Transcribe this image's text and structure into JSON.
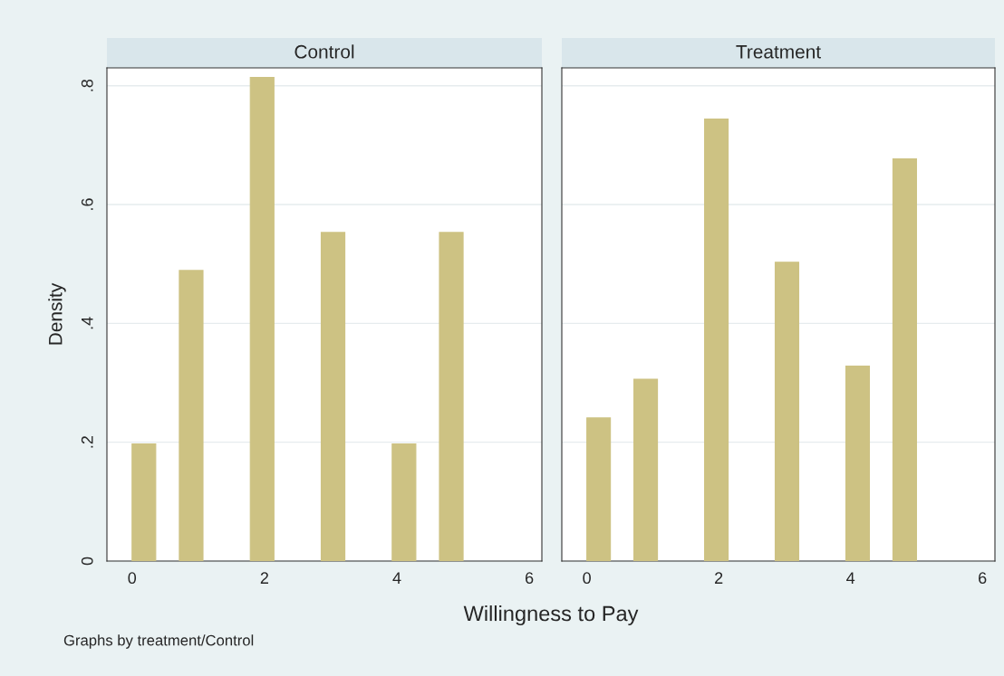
{
  "chart_data": [
    {
      "type": "histogram",
      "title": "Control",
      "ylabel": "Density",
      "xlabel": "Willingness to Pay",
      "annotations": [
        "Graphs by treatment/Control"
      ],
      "bins": [
        0,
        0.357,
        0.714,
        1.071,
        1.429,
        1.786,
        2.143,
        2.5,
        2.857,
        3.214,
        3.571,
        3.929,
        4.286,
        4.643,
        5
      ],
      "values": [
        0.197,
        0,
        0.489,
        0,
        0,
        0.814,
        0,
        0,
        0.553,
        0,
        0,
        0.197,
        0,
        0.553
      ],
      "color": "#cdc283",
      "xlim": [
        -0.38,
        6.19
      ],
      "xticks": [
        0,
        2,
        4,
        6
      ],
      "ylim": [
        0,
        0.83
      ],
      "yticks": [
        0,
        {
          "value": 0.2,
          "label": ".2"
        },
        {
          "value": 0.4,
          "label": ".4"
        },
        {
          "value": 0.6,
          "label": ".6"
        },
        {
          "value": 0.8,
          "label": ".8"
        }
      ],
      "grid": "y"
    },
    {
      "type": "histogram",
      "title": "Treatment",
      "bins": [
        0,
        0.357,
        0.714,
        1.071,
        1.429,
        1.786,
        2.143,
        2.5,
        2.857,
        3.214,
        3.571,
        3.929,
        4.286,
        4.643,
        5
      ],
      "values": [
        0.241,
        0,
        0.306,
        0,
        0,
        0.744,
        0,
        0,
        0.503,
        0,
        0,
        0.328,
        0,
        0.677
      ],
      "color": "#cdc283",
      "xlim": [
        -0.38,
        6.19
      ],
      "xticks": [
        0,
        2,
        4,
        6
      ],
      "ylim": [
        0,
        0.83
      ],
      "yticks": [
        0,
        0.2,
        0.4,
        0.6,
        0.8
      ],
      "grid": "y",
      "tick_labels": "x"
    }
  ]
}
